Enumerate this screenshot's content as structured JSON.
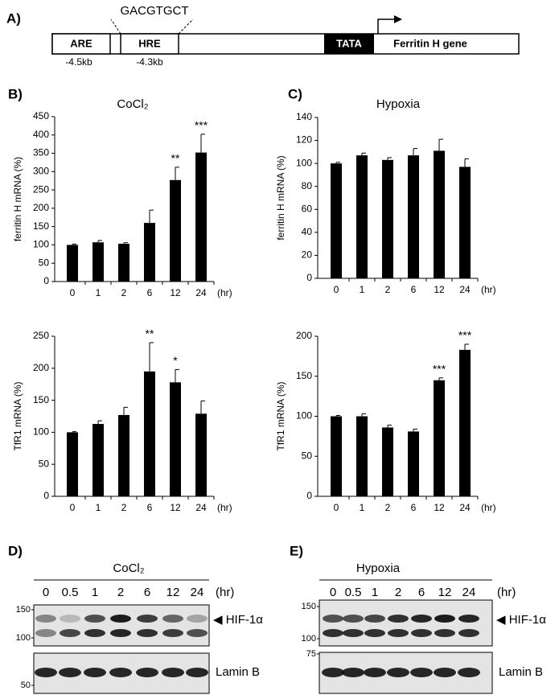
{
  "diagram": {
    "label": "A)",
    "sequence": "GACGTGCT",
    "elements": [
      "ARE",
      "HRE",
      "TATA",
      "Ferritin H gene"
    ],
    "positions": [
      "-4.5kb",
      "-4.3kb"
    ]
  },
  "chart_data": [
    {
      "type": "bar",
      "panel": "B)",
      "title": "CoCl₂",
      "y_label": "ferritin H mRNA (%)",
      "x_unit": "(hr)",
      "categories": [
        "0",
        "1",
        "2",
        "6",
        "12",
        "24"
      ],
      "values": [
        100,
        107,
        103,
        160,
        277,
        352
      ],
      "errors": [
        2,
        5,
        3,
        35,
        35,
        50
      ],
      "significance": [
        null,
        null,
        null,
        null,
        "**",
        "***"
      ],
      "color": "#000000",
      "ylim": [
        0,
        450
      ],
      "yticks": [
        0,
        50,
        100,
        150,
        200,
        250,
        300,
        350,
        400,
        450
      ]
    },
    {
      "type": "bar",
      "y_label": "TfR1 mRNA (%)",
      "x_unit": "(hr)",
      "categories": [
        "0",
        "1",
        "2",
        "6",
        "12",
        "24"
      ],
      "values": [
        100,
        113,
        127,
        195,
        178,
        129
      ],
      "errors": [
        1,
        5,
        12,
        45,
        20,
        20
      ],
      "significance": [
        null,
        null,
        null,
        "**",
        "*",
        null
      ],
      "color": "#000000",
      "ylim": [
        0,
        250
      ],
      "yticks": [
        0,
        50,
        100,
        150,
        200,
        250
      ]
    },
    {
      "type": "bar",
      "panel": "C)",
      "title": "Hypoxia",
      "y_label": "ferritin H mRNA (%)",
      "x_unit": "(hr)",
      "categories": [
        "0",
        "1",
        "2",
        "6",
        "12",
        "24"
      ],
      "values": [
        100,
        107,
        103,
        107,
        111,
        97
      ],
      "errors": [
        1,
        2,
        2,
        6,
        10,
        7
      ],
      "significance": [
        null,
        null,
        null,
        null,
        null,
        null
      ],
      "color": "#000000",
      "ylim": [
        0,
        140
      ],
      "yticks": [
        0,
        20,
        40,
        60,
        80,
        100,
        120,
        140
      ]
    },
    {
      "type": "bar",
      "y_label": "TfR1 mRNA (%)",
      "x_unit": "(hr)",
      "categories": [
        "0",
        "1",
        "2",
        "6",
        "12",
        "24"
      ],
      "values": [
        100,
        100,
        86,
        81,
        145,
        183
      ],
      "errors": [
        1,
        3,
        3,
        3,
        3,
        7
      ],
      "significance": [
        null,
        null,
        null,
        null,
        "***",
        "***"
      ],
      "color": "#000000",
      "ylim": [
        0,
        200
      ],
      "yticks": [
        0,
        50,
        100,
        150,
        200
      ]
    }
  ],
  "blots": [
    {
      "label": "D)",
      "title": "CoCl₂",
      "lanes": [
        "0",
        "0.5",
        "1",
        "2",
        "6",
        "12",
        "24"
      ],
      "unit": "(hr)",
      "markers": [
        "150",
        "100",
        "50"
      ],
      "bands": [
        "◀ HIF-1α",
        "Lamin B"
      ]
    },
    {
      "label": "E)",
      "title": "Hypoxia",
      "lanes": [
        "0",
        "0.5",
        "1",
        "2",
        "6",
        "12",
        "24"
      ],
      "unit": "(hr)",
      "markers": [
        "150",
        "100",
        "75"
      ],
      "bands": [
        "◀ HIF-1α",
        "Lamin B"
      ]
    }
  ]
}
